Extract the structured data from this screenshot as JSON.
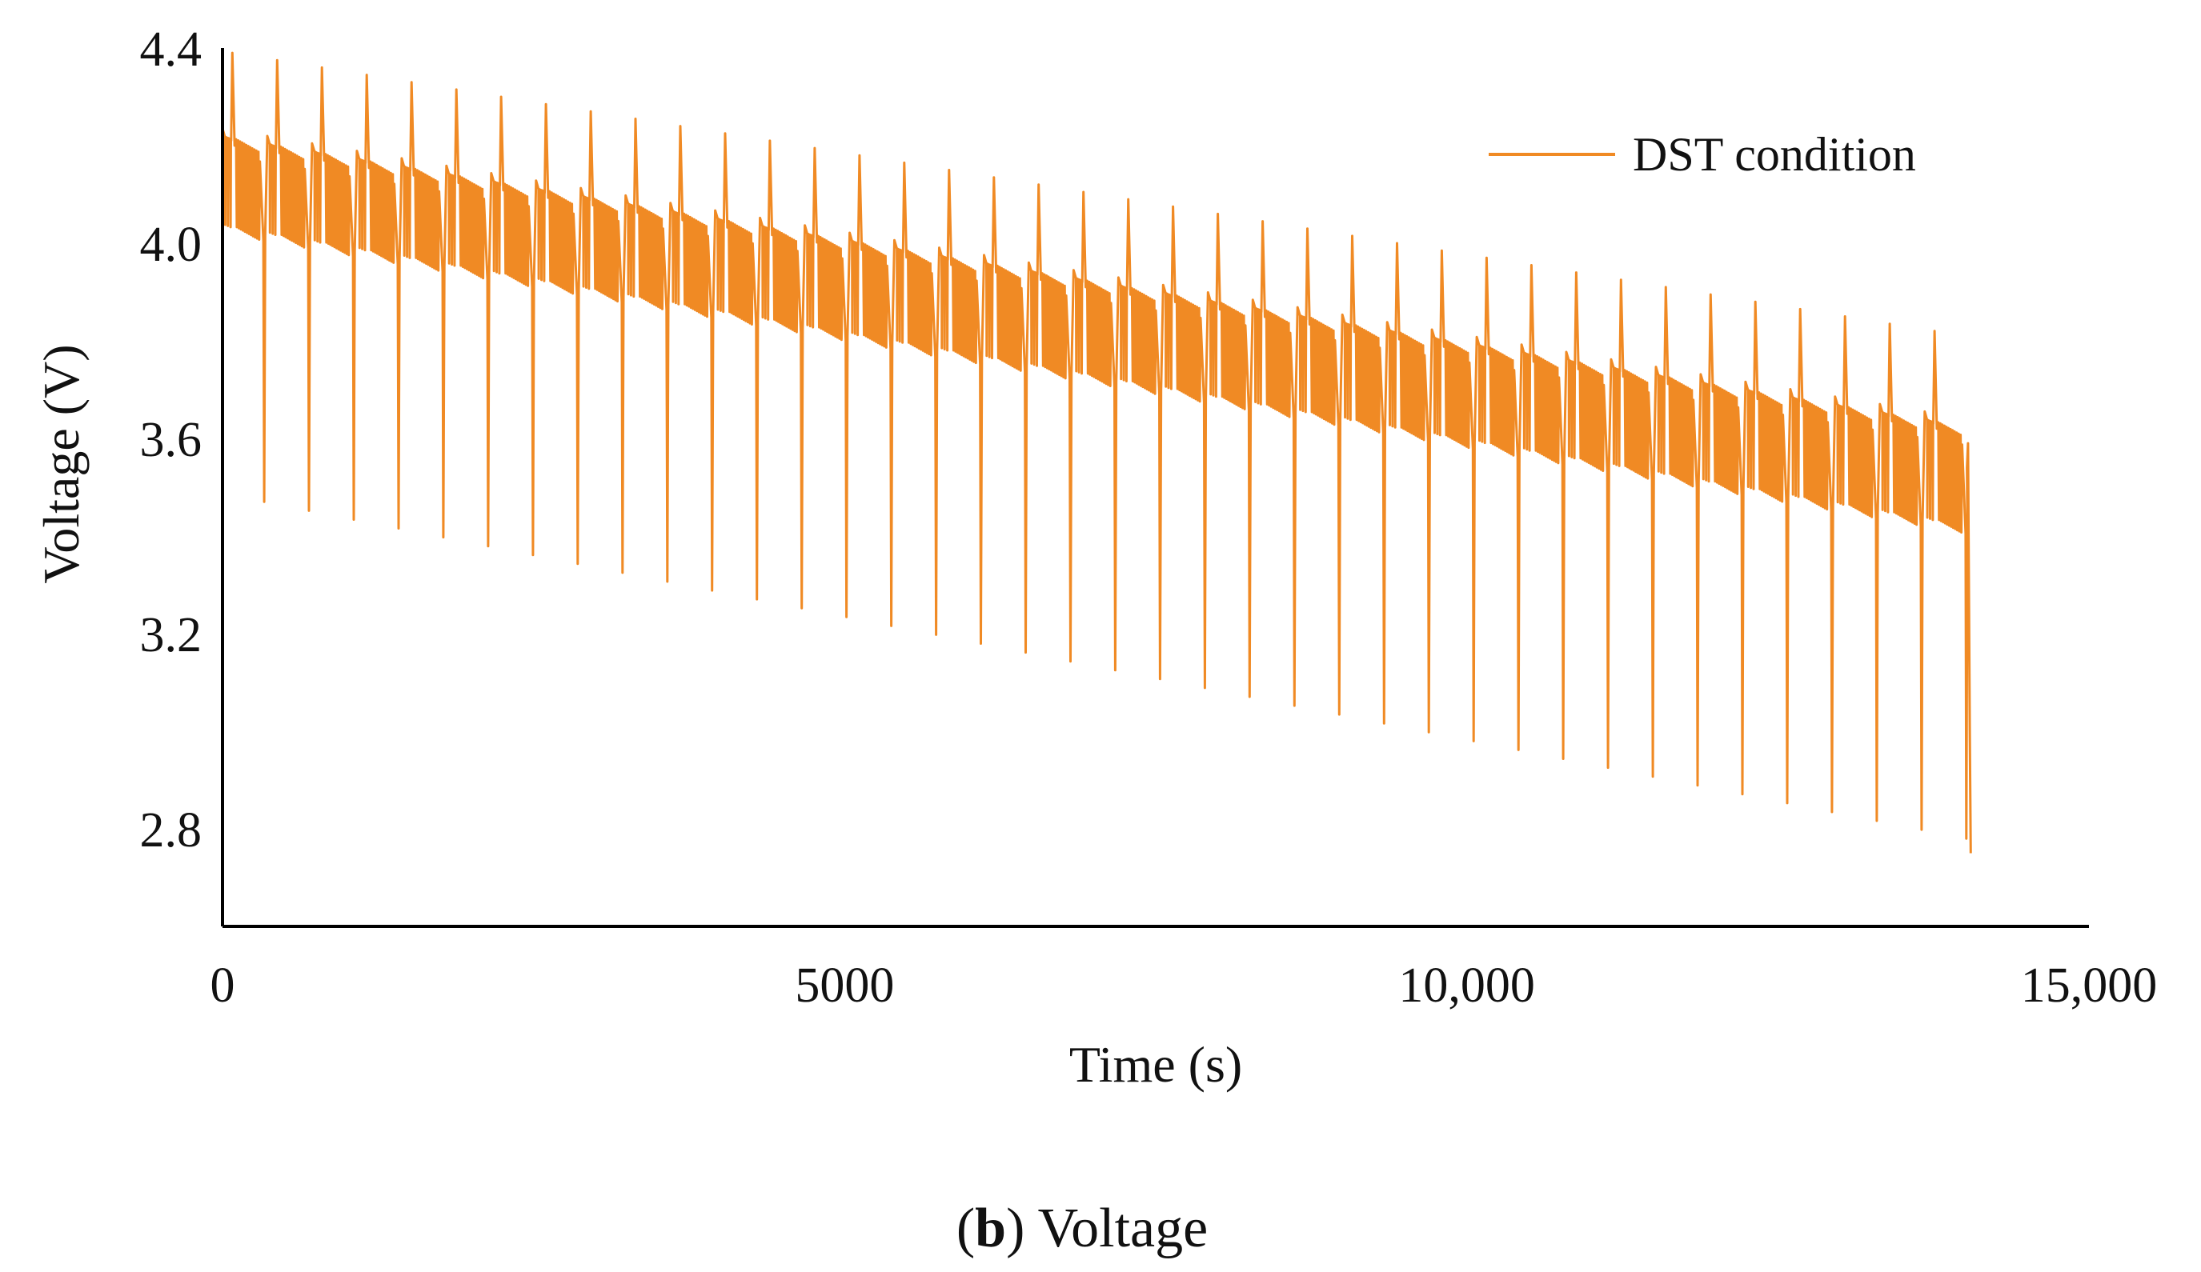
{
  "chart_data": {
    "type": "line",
    "title": "",
    "xlabel": "Time (s)",
    "ylabel": "Voltage (V)",
    "xlim": [
      0,
      15000
    ],
    "ylim": [
      2.6,
      4.4
    ],
    "x_ticks": [
      0,
      5000,
      10000,
      15000
    ],
    "x_tick_labels": [
      "0",
      "5000",
      "10,000",
      "15,000"
    ],
    "y_ticks": [
      2.8,
      3.2,
      3.6,
      4.0,
      4.4
    ],
    "y_tick_labels": [
      "2.8",
      "3.2",
      "3.6",
      "4.0",
      "4.4"
    ],
    "grid": false,
    "legend": {
      "position": "top-right",
      "entries": [
        "DST condition"
      ]
    },
    "series": [
      {
        "name": "DST condition",
        "color": "#F08A24",
        "description": "Repeated DST cycles of about 360 s each, from 0 s to about 14,050 s, voltage falling gradually, ending at about 2.75 V",
        "cycle_period_s": 360,
        "num_cycles": 39,
        "end_time_s": 14050,
        "end_voltage": 2.75,
        "cycle_peak_first": 4.39,
        "cycle_peak_last": 3.82,
        "cycle_min_first": 3.47,
        "cycle_min_last": 2.78,
        "band_upper_first": 4.22,
        "band_upper_last": 3.64,
        "band_lower_first": 4.04,
        "band_lower_last": 3.44
      }
    ]
  },
  "caption": {
    "letter": "b",
    "open": "(",
    "close": ")",
    "text": " Voltage"
  }
}
